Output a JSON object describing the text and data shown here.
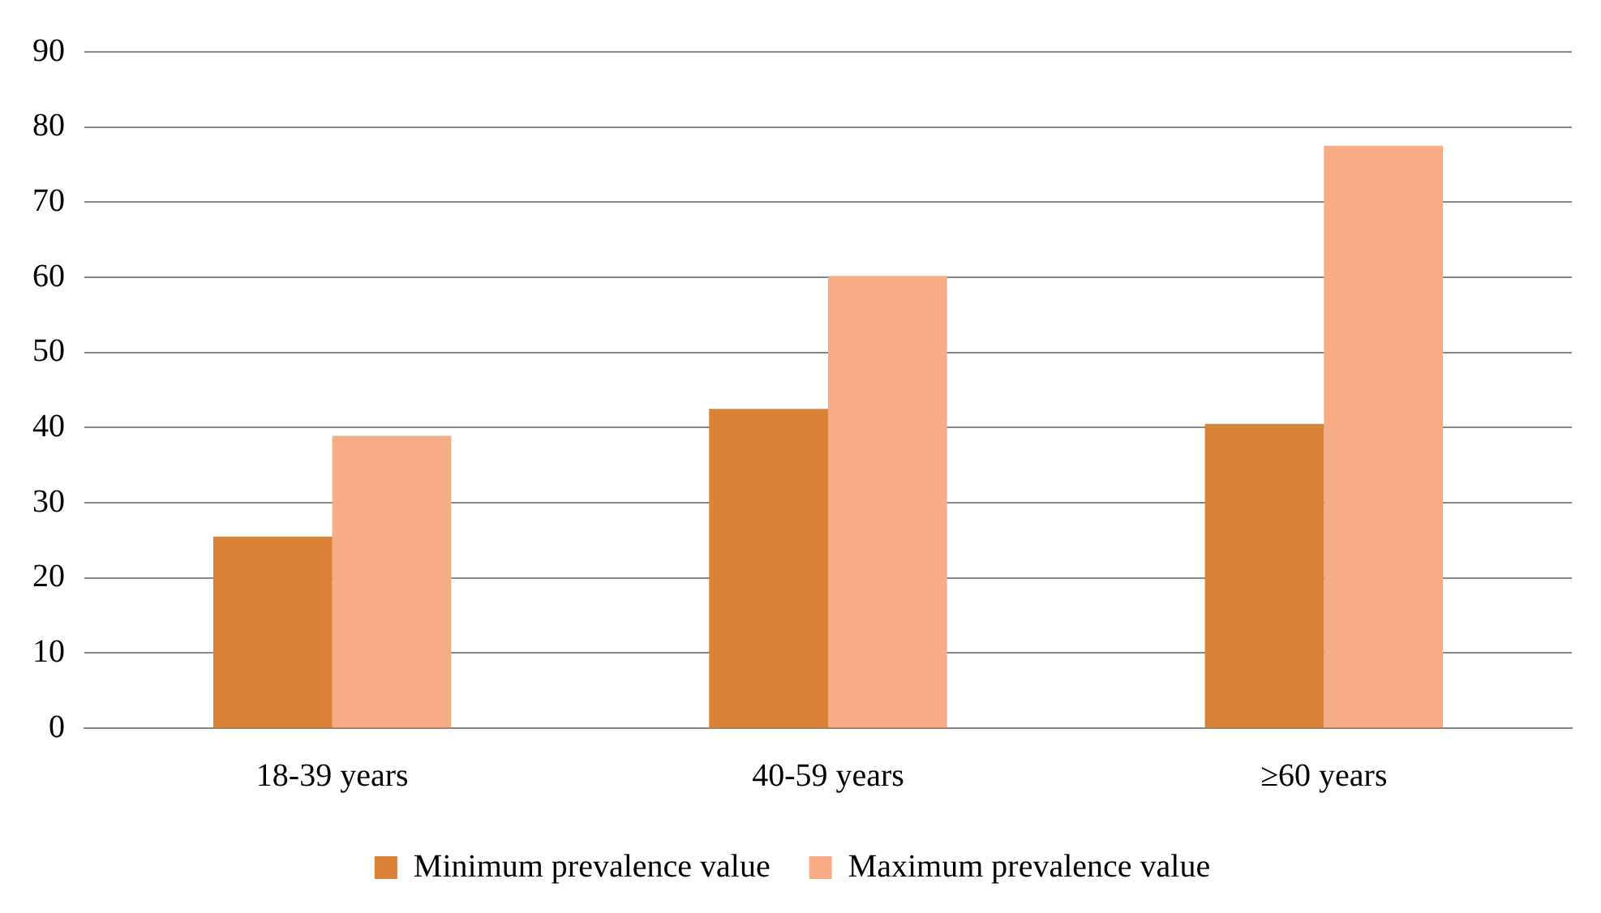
{
  "chart_data": {
    "type": "bar",
    "categories": [
      "18-39 years",
      "40-59 years",
      "≥60 years"
    ],
    "series": [
      {
        "name": "Minimum prevalence value",
        "color": "#dc8237",
        "values": [
          25.5,
          42.5,
          40.5
        ]
      },
      {
        "name": "Maximum prevalence value",
        "color": "#f7ac86",
        "values": [
          38.9,
          60.2,
          77.5
        ]
      }
    ],
    "ylim": [
      0,
      90
    ],
    "yticks": [
      0,
      10,
      20,
      30,
      40,
      50,
      60,
      70,
      80,
      90
    ],
    "grid": "y",
    "legend": "bottom"
  }
}
